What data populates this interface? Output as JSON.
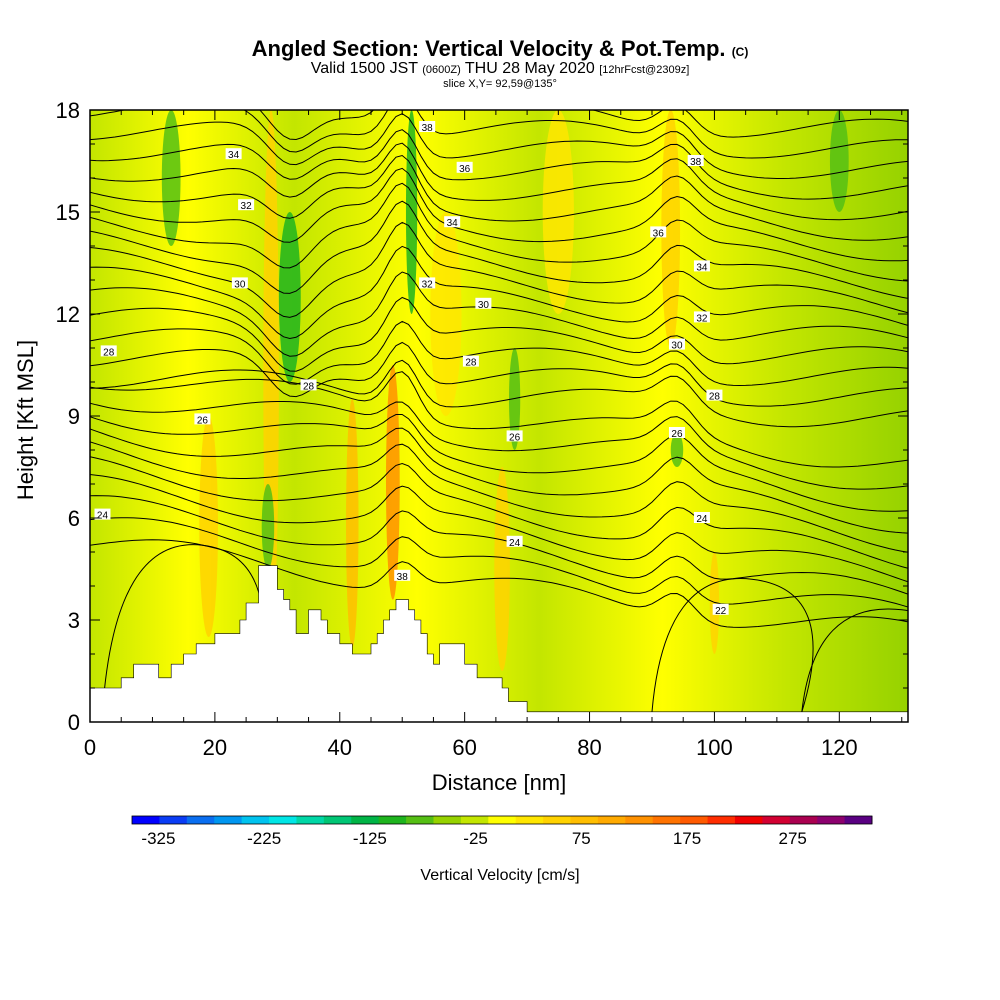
{
  "header": {
    "title": "Angled Section: Vertical Velocity & Pot.Temp.",
    "copyright": "(C)",
    "valid_a": "Valid 1500 JST",
    "valid_b": "(0600Z)",
    "valid_c": "THU 28 May 2020",
    "valid_d": "[12hrFcst@2309z]",
    "slice": "slice X,Y= 92,59@135°"
  },
  "chart_data": {
    "type": "heatmap",
    "xlabel": "Distance [nm]",
    "ylabel": "Height [Kft MSL]",
    "xlim": [
      0,
      131
    ],
    "ylim": [
      0,
      18
    ],
    "xticks": [
      0,
      20,
      40,
      60,
      80,
      100,
      120
    ],
    "yticks": [
      0,
      3,
      6,
      9,
      12,
      15,
      18
    ],
    "colorbar": {
      "label": "Vertical Velocity [cm/s]",
      "min": -350,
      "max": 350,
      "step": 25,
      "tick_labels": [
        "-325",
        "-225",
        "-125",
        "-25",
        "75",
        "175",
        "275"
      ],
      "tick_values": [
        -325,
        -225,
        -125,
        -25,
        75,
        175,
        275
      ],
      "colors": [
        "#0000ff",
        "#0a3cf5",
        "#0a6ef0",
        "#0096f0",
        "#00c3ef",
        "#00e6e6",
        "#00d7a6",
        "#00c675",
        "#00b446",
        "#1eb41e",
        "#55bf14",
        "#96d200",
        "#c3e600",
        "#ffff00",
        "#ffe600",
        "#ffd200",
        "#ffbe00",
        "#ffaa00",
        "#ff9100",
        "#ff7300",
        "#ff5a00",
        "#ff2d00",
        "#f00000",
        "#d20032",
        "#aa0050",
        "#8c006e",
        "#5a0082"
      ]
    },
    "isotherm_labels": [
      {
        "text": "22",
        "x": 101,
        "y": 3.3
      },
      {
        "text": "24",
        "x": 2,
        "y": 6.1
      },
      {
        "text": "24",
        "x": 68,
        "y": 5.3
      },
      {
        "text": "24",
        "x": 98,
        "y": 6.0
      },
      {
        "text": "26",
        "x": 18,
        "y": 8.9
      },
      {
        "text": "26",
        "x": 68,
        "y": 8.4
      },
      {
        "text": "26",
        "x": 94,
        "y": 8.5
      },
      {
        "text": "28",
        "x": 3,
        "y": 10.9
      },
      {
        "text": "28",
        "x": 35,
        "y": 9.9
      },
      {
        "text": "28",
        "x": 61,
        "y": 10.6
      },
      {
        "text": "28",
        "x": 100,
        "y": 9.6
      },
      {
        "text": "30",
        "x": 24,
        "y": 12.9
      },
      {
        "text": "30",
        "x": 63,
        "y": 12.3
      },
      {
        "text": "30",
        "x": 94,
        "y": 11.1
      },
      {
        "text": "32",
        "x": 25,
        "y": 15.2
      },
      {
        "text": "32",
        "x": 54,
        "y": 12.9
      },
      {
        "text": "32",
        "x": 98,
        "y": 11.9
      },
      {
        "text": "34",
        "x": 23,
        "y": 16.7
      },
      {
        "text": "34",
        "x": 58,
        "y": 14.7
      },
      {
        "text": "34",
        "x": 98,
        "y": 13.4
      },
      {
        "text": "36",
        "x": 60,
        "y": 16.3
      },
      {
        "text": "36",
        "x": 91,
        "y": 14.4
      },
      {
        "text": "38",
        "x": 54,
        "y": 17.5
      },
      {
        "text": "38",
        "x": 97,
        "y": 16.5
      },
      {
        "text": "38",
        "x": 50,
        "y": 4.3
      }
    ],
    "terrain": [
      [
        0,
        1.0
      ],
      [
        5,
        1.0
      ],
      [
        5,
        1.3
      ],
      [
        7,
        1.3
      ],
      [
        7,
        1.7
      ],
      [
        11,
        1.7
      ],
      [
        11,
        1.3
      ],
      [
        13,
        1.3
      ],
      [
        13,
        1.7
      ],
      [
        15,
        1.7
      ],
      [
        15,
        2.0
      ],
      [
        17,
        2.0
      ],
      [
        17,
        2.3
      ],
      [
        20,
        2.3
      ],
      [
        20,
        2.6
      ],
      [
        24,
        2.6
      ],
      [
        24,
        3.0
      ],
      [
        25,
        3.0
      ],
      [
        25,
        3.5
      ],
      [
        27,
        3.5
      ],
      [
        27,
        4.6
      ],
      [
        30,
        4.6
      ],
      [
        30,
        3.9
      ],
      [
        31,
        3.9
      ],
      [
        31,
        3.6
      ],
      [
        32,
        3.6
      ],
      [
        32,
        3.3
      ],
      [
        33,
        3.3
      ],
      [
        33,
        2.6
      ],
      [
        35,
        2.6
      ],
      [
        35,
        3.3
      ],
      [
        37,
        3.3
      ],
      [
        37,
        3.0
      ],
      [
        38,
        3.0
      ],
      [
        38,
        2.6
      ],
      [
        40,
        2.6
      ],
      [
        40,
        2.3
      ],
      [
        42,
        2.3
      ],
      [
        42,
        2.0
      ],
      [
        45,
        2.0
      ],
      [
        45,
        2.3
      ],
      [
        46,
        2.3
      ],
      [
        46,
        2.6
      ],
      [
        47,
        2.6
      ],
      [
        47,
        3.0
      ],
      [
        48,
        3.0
      ],
      [
        48,
        3.3
      ],
      [
        49,
        3.3
      ],
      [
        49,
        3.6
      ],
      [
        51,
        3.6
      ],
      [
        51,
        3.3
      ],
      [
        52,
        3.3
      ],
      [
        52,
        3.0
      ],
      [
        53,
        3.0
      ],
      [
        53,
        2.6
      ],
      [
        54,
        2.6
      ],
      [
        54,
        2.0
      ],
      [
        55,
        2.0
      ],
      [
        55,
        1.7
      ],
      [
        56,
        1.7
      ],
      [
        56,
        2.3
      ],
      [
        60,
        2.3
      ],
      [
        60,
        1.7
      ],
      [
        62,
        1.7
      ],
      [
        62,
        1.3
      ],
      [
        66,
        1.3
      ],
      [
        66,
        1.0
      ],
      [
        67,
        1.0
      ],
      [
        67,
        0.6
      ],
      [
        70,
        0.6
      ],
      [
        70,
        0.3
      ],
      [
        131,
        0.3
      ]
    ],
    "updraft_bands": [
      {
        "x": 29,
        "width": 2.5,
        "bottom": 2.5,
        "top": 18,
        "color": "#ffd200"
      },
      {
        "x": 42,
        "width": 2.0,
        "bottom": 2.2,
        "top": 9.5,
        "color": "#ffbe00"
      },
      {
        "x": 48.5,
        "width": 2.2,
        "bottom": 3.6,
        "top": 10.5,
        "color": "#ff9100"
      },
      {
        "x": 57,
        "width": 5,
        "bottom": 9,
        "top": 15,
        "color": "#ffe600"
      },
      {
        "x": 19,
        "width": 3,
        "bottom": 2.5,
        "top": 9.0,
        "color": "#ffd200"
      },
      {
        "x": 66,
        "width": 2.5,
        "bottom": 1.5,
        "top": 7.5,
        "color": "#ffd200"
      },
      {
        "x": 93,
        "width": 3,
        "bottom": 11,
        "top": 18,
        "color": "#ffd200"
      },
      {
        "x": 75,
        "width": 5,
        "bottom": 12,
        "top": 18,
        "color": "#ffe600"
      },
      {
        "x": 100,
        "width": 1.5,
        "bottom": 2,
        "top": 5,
        "color": "#ffd200"
      }
    ],
    "downdraft_bands": [
      {
        "x": 32,
        "width": 3.5,
        "bottom": 10,
        "top": 15,
        "color": "#1eb41e"
      },
      {
        "x": 51.5,
        "width": 1.8,
        "bottom": 12,
        "top": 18,
        "color": "#1eb41e"
      },
      {
        "x": 68,
        "width": 1.8,
        "bottom": 8,
        "top": 11,
        "color": "#55bf14"
      },
      {
        "x": 28.5,
        "width": 2,
        "bottom": 4.5,
        "top": 7,
        "color": "#55bf14"
      },
      {
        "x": 13,
        "width": 3,
        "bottom": 14,
        "top": 18,
        "color": "#55bf14"
      },
      {
        "x": 120,
        "width": 3,
        "bottom": 15,
        "top": 18,
        "color": "#55bf14"
      },
      {
        "x": 94,
        "width": 2,
        "bottom": 7.5,
        "top": 8.5,
        "color": "#55bf14"
      }
    ]
  }
}
